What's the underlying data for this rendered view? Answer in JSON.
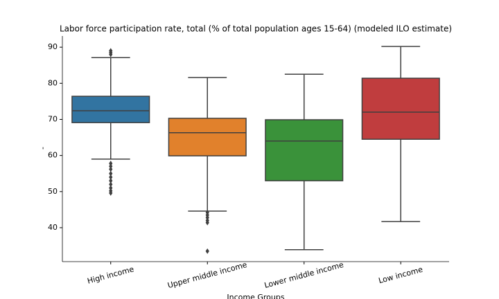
{
  "chart_data": {
    "type": "box",
    "title": "Labor force participation rate, total (% of total population ages 15-64) (modeled ILO estimate)",
    "xlabel": "Income Groups",
    "ylabel": "-",
    "categories": [
      "High income",
      "Upper middle income",
      "Lower middle income",
      "Low income"
    ],
    "colors": [
      "#3274a1",
      "#e1812c",
      "#3a923a",
      "#c03d3e"
    ],
    "boxes": [
      {
        "whislo": 59.0,
        "q1": 69.1,
        "med": 72.4,
        "q3": 76.4,
        "whishi": 87.1,
        "fliers": [
          89.0,
          88.5,
          88.0,
          57.8,
          57.0,
          56.2,
          55.0,
          54.0,
          53.0,
          52.0,
          51.0,
          50.2,
          49.6
        ]
      },
      {
        "whislo": 44.6,
        "q1": 59.9,
        "med": 66.3,
        "q3": 70.3,
        "whishi": 81.6,
        "fliers": [
          44.2,
          43.5,
          42.8,
          42.0,
          41.4,
          33.5
        ]
      },
      {
        "whislo": 33.9,
        "q1": 53.0,
        "med": 64.0,
        "q3": 69.9,
        "whishi": 82.5,
        "fliers": []
      },
      {
        "whislo": 41.7,
        "q1": 64.5,
        "med": 72.0,
        "q3": 81.4,
        "whishi": 90.2,
        "fliers": []
      }
    ],
    "ylim": [
      30.6,
      93.1
    ],
    "yticks": [
      40,
      50,
      60,
      70,
      80,
      90
    ]
  }
}
